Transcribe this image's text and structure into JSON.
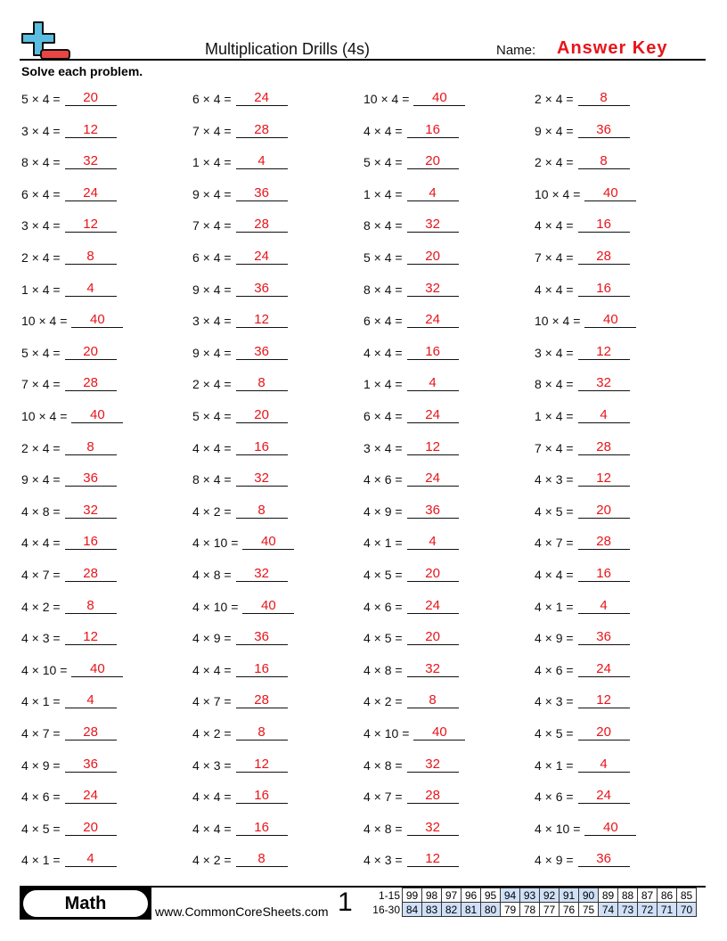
{
  "header": {
    "title": "Multiplication Drills (4s)",
    "name_label": "Name:",
    "name_value": "Answer Key",
    "instructions": "Solve each problem."
  },
  "colors": {
    "answer": "#e8141a",
    "logo_blue": "#5bbde0",
    "logo_red": "#e84545",
    "score_highlight": "#cfe0f7"
  },
  "columns": [
    [
      [
        "5 × 4 =",
        "20"
      ],
      [
        "3 × 4 =",
        "12"
      ],
      [
        "8 × 4 =",
        "32"
      ],
      [
        "6 × 4 =",
        "24"
      ],
      [
        "3 × 4 =",
        "12"
      ],
      [
        "2 × 4 =",
        "8"
      ],
      [
        "1 × 4 =",
        "4"
      ],
      [
        "10 × 4 =",
        "40"
      ],
      [
        "5 × 4 =",
        "20"
      ],
      [
        "7 × 4 =",
        "28"
      ],
      [
        "10 × 4 =",
        "40"
      ],
      [
        "2 × 4 =",
        "8"
      ],
      [
        "9 × 4 =",
        "36"
      ],
      [
        "4 × 8 =",
        "32"
      ],
      [
        "4 × 4 =",
        "16"
      ],
      [
        "4 × 7 =",
        "28"
      ],
      [
        "4 × 2 =",
        "8"
      ],
      [
        "4 × 3 =",
        "12"
      ],
      [
        "4 × 10 =",
        "40"
      ],
      [
        "4 × 1 =",
        "4"
      ],
      [
        "4 × 7 =",
        "28"
      ],
      [
        "4 × 9 =",
        "36"
      ],
      [
        "4 × 6 =",
        "24"
      ],
      [
        "4 × 5 =",
        "20"
      ],
      [
        "4 × 1 =",
        "4"
      ]
    ],
    [
      [
        "6 × 4 =",
        "24"
      ],
      [
        "7 × 4 =",
        "28"
      ],
      [
        "1 × 4 =",
        "4"
      ],
      [
        "9 × 4 =",
        "36"
      ],
      [
        "7 × 4 =",
        "28"
      ],
      [
        "6 × 4 =",
        "24"
      ],
      [
        "9 × 4 =",
        "36"
      ],
      [
        "3 × 4 =",
        "12"
      ],
      [
        "9 × 4 =",
        "36"
      ],
      [
        "2 × 4 =",
        "8"
      ],
      [
        "5 × 4 =",
        "20"
      ],
      [
        "4 × 4 =",
        "16"
      ],
      [
        "8 × 4 =",
        "32"
      ],
      [
        "4 × 2 =",
        "8"
      ],
      [
        "4 × 10 =",
        "40"
      ],
      [
        "4 × 8 =",
        "32"
      ],
      [
        "4 × 10 =",
        "40"
      ],
      [
        "4 × 9 =",
        "36"
      ],
      [
        "4 × 4 =",
        "16"
      ],
      [
        "4 × 7 =",
        "28"
      ],
      [
        "4 × 2 =",
        "8"
      ],
      [
        "4 × 3 =",
        "12"
      ],
      [
        "4 × 4 =",
        "16"
      ],
      [
        "4 × 4 =",
        "16"
      ],
      [
        "4 × 2 =",
        "8"
      ]
    ],
    [
      [
        "10 × 4 =",
        "40"
      ],
      [
        "4 × 4 =",
        "16"
      ],
      [
        "5 × 4 =",
        "20"
      ],
      [
        "1 × 4 =",
        "4"
      ],
      [
        "8 × 4 =",
        "32"
      ],
      [
        "5 × 4 =",
        "20"
      ],
      [
        "8 × 4 =",
        "32"
      ],
      [
        "6 × 4 =",
        "24"
      ],
      [
        "4 × 4 =",
        "16"
      ],
      [
        "1 × 4 =",
        "4"
      ],
      [
        "6 × 4 =",
        "24"
      ],
      [
        "3 × 4 =",
        "12"
      ],
      [
        "4 × 6 =",
        "24"
      ],
      [
        "4 × 9 =",
        "36"
      ],
      [
        "4 × 1 =",
        "4"
      ],
      [
        "4 × 5 =",
        "20"
      ],
      [
        "4 × 6 =",
        "24"
      ],
      [
        "4 × 5 =",
        "20"
      ],
      [
        "4 × 8 =",
        "32"
      ],
      [
        "4 × 2 =",
        "8"
      ],
      [
        "4 × 10 =",
        "40"
      ],
      [
        "4 × 8 =",
        "32"
      ],
      [
        "4 × 7 =",
        "28"
      ],
      [
        "4 × 8 =",
        "32"
      ],
      [
        "4 × 3 =",
        "12"
      ]
    ],
    [
      [
        "2 × 4 =",
        "8"
      ],
      [
        "9 × 4 =",
        "36"
      ],
      [
        "2 × 4 =",
        "8"
      ],
      [
        "10 × 4 =",
        "40"
      ],
      [
        "4 × 4 =",
        "16"
      ],
      [
        "7 × 4 =",
        "28"
      ],
      [
        "4 × 4 =",
        "16"
      ],
      [
        "10 × 4 =",
        "40"
      ],
      [
        "3 × 4 =",
        "12"
      ],
      [
        "8 × 4 =",
        "32"
      ],
      [
        "1 × 4 =",
        "4"
      ],
      [
        "7 × 4 =",
        "28"
      ],
      [
        "4 × 3 =",
        "12"
      ],
      [
        "4 × 5 =",
        "20"
      ],
      [
        "4 × 7 =",
        "28"
      ],
      [
        "4 × 4 =",
        "16"
      ],
      [
        "4 × 1 =",
        "4"
      ],
      [
        "4 × 9 =",
        "36"
      ],
      [
        "4 × 6 =",
        "24"
      ],
      [
        "4 × 3 =",
        "12"
      ],
      [
        "4 × 5 =",
        "20"
      ],
      [
        "4 × 1 =",
        "4"
      ],
      [
        "4 × 6 =",
        "24"
      ],
      [
        "4 × 10 =",
        "40"
      ],
      [
        "4 × 9 =",
        "36"
      ]
    ]
  ],
  "footer": {
    "subject": "Math",
    "website": "www.CommonCoreSheets.com",
    "page_number": "1",
    "score_rows": [
      {
        "label": "1-15",
        "values": [
          "99",
          "98",
          "97",
          "96",
          "95",
          "94",
          "93",
          "92",
          "91",
          "90",
          "89",
          "88",
          "87",
          "86",
          "85"
        ],
        "highlighted": [
          false,
          false,
          false,
          false,
          false,
          true,
          true,
          true,
          true,
          true,
          false,
          false,
          false,
          false,
          false
        ]
      },
      {
        "label": "16-30",
        "values": [
          "84",
          "83",
          "82",
          "81",
          "80",
          "79",
          "78",
          "77",
          "76",
          "75",
          "74",
          "73",
          "72",
          "71",
          "70"
        ],
        "highlighted": [
          true,
          true,
          true,
          true,
          true,
          false,
          false,
          false,
          false,
          false,
          true,
          true,
          true,
          true,
          true
        ]
      }
    ]
  }
}
